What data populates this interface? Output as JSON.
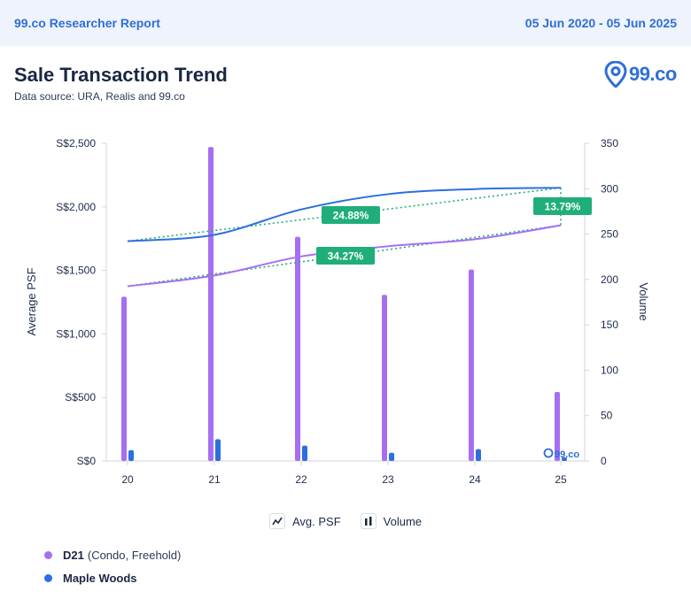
{
  "header": {
    "report_label": "99.co Researcher Report",
    "date_range": "05 Jun 2020 - 05 Jun 2025"
  },
  "title": "Sale Transaction Trend",
  "subtitle": "Data source: URA, Realis and 99.co",
  "logo": {
    "text": "99.co",
    "icon": "location-pin-icon"
  },
  "colors": {
    "purple": "#a66ff2",
    "blue": "#2d6fe0",
    "green": "#1fae7a",
    "accent": "#2f6fd6"
  },
  "chart_data": {
    "type": "bar",
    "categories": [
      "20",
      "21",
      "22",
      "23",
      "24",
      "25"
    ],
    "y_left": {
      "label": "Average PSF",
      "range": [
        0,
        2500
      ],
      "ticks": [
        "S$0",
        "S$500",
        "S$1,000",
        "S$1,500",
        "S$2,000",
        "S$2,500"
      ]
    },
    "y_right": {
      "label": "Volume",
      "range": [
        0,
        350
      ],
      "ticks": [
        "0",
        "50",
        "100",
        "150",
        "200",
        "250",
        "300",
        "350"
      ]
    },
    "volume_series": [
      {
        "name": "D21",
        "values": [
          181,
          346,
          247,
          183,
          211,
          76
        ]
      },
      {
        "name": "Maple Woods",
        "values": [
          12,
          24,
          17,
          9,
          13,
          4
        ]
      }
    ],
    "avg_psf_series": [
      {
        "name": "D21",
        "values": [
          1375,
          1460,
          1610,
          1690,
          1745,
          1855
        ]
      },
      {
        "name": "Maple Woods",
        "values": [
          1730,
          1780,
          1980,
          2100,
          2140,
          2150
        ]
      }
    ],
    "trendlines": [
      {
        "name": "D21",
        "from": 1375,
        "to": 1855
      },
      {
        "name": "Maple Woods",
        "from": 1730,
        "to": 2150
      }
    ],
    "annotations": [
      "24.88%",
      "34.27%",
      "13.79%"
    ],
    "watermark": "99.co",
    "grid": false,
    "legend": [
      "Avg. PSF",
      "Volume"
    ]
  },
  "series_legend": [
    {
      "name": "D21",
      "detail": "(Condo, Freehold)",
      "color": "#a66ff2"
    },
    {
      "name": "Maple Woods",
      "detail": "",
      "color": "#2d6fe0"
    }
  ]
}
